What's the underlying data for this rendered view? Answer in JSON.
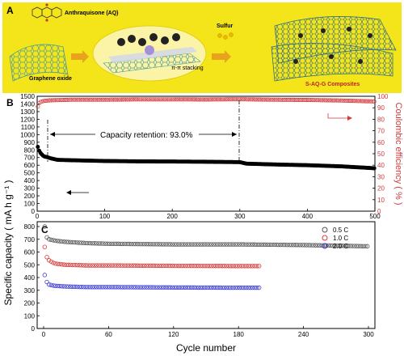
{
  "panel_a": {
    "label": "A",
    "anthraquinone_label": "Anthraquisone (AQ)",
    "graphene_label": "Graphene oxide",
    "stacking_label": "π-π stacking",
    "sulfur_label": "Sulfur",
    "composite_label": "S-AQ-G Composites",
    "colors": {
      "background": "#f4e51a",
      "arrow": "#e8a21c",
      "graphene": "#5aa8a0"
    }
  },
  "chart_data": [
    {
      "panel": "B",
      "type": "scatter",
      "xlabel": "",
      "xlim": [
        0,
        500
      ],
      "xticks": [
        0,
        100,
        200,
        300,
        400,
        500
      ],
      "ylabel": "Specific capacity ( mA h g⁻¹ )",
      "ylim": [
        0,
        1500
      ],
      "yticks": [
        0,
        100,
        200,
        300,
        400,
        500,
        600,
        700,
        800,
        900,
        1000,
        1100,
        1200,
        1300,
        1400,
        1500
      ],
      "y2label": "Coulombic efficiency ( % )",
      "y2lim": [
        0,
        100
      ],
      "y2ticks": [
        0,
        10,
        20,
        30,
        40,
        50,
        60,
        70,
        80,
        90,
        100
      ],
      "annotation": "Capacity retention: 93.0%",
      "series": [
        {
          "axis": "left",
          "color": "#000000",
          "points": [
            [
              1,
              840
            ],
            [
              2,
              810
            ],
            [
              3,
              790
            ],
            [
              5,
              760
            ],
            [
              8,
              730
            ],
            [
              10,
              715
            ],
            [
              15,
              705
            ],
            [
              20,
              690
            ],
            [
              30,
              670
            ],
            [
              50,
              665
            ],
            [
              75,
              660
            ],
            [
              100,
              655
            ],
            [
              150,
              650
            ],
            [
              200,
              648
            ],
            [
              250,
              645
            ],
            [
              300,
              640
            ],
            [
              310,
              620
            ],
            [
              350,
              610
            ],
            [
              400,
              600
            ],
            [
              450,
              585
            ],
            [
              500,
              560
            ]
          ]
        },
        {
          "axis": "right",
          "color": "#d23a3a",
          "points": [
            [
              1,
              91
            ],
            [
              3,
              94
            ],
            [
              5,
              95
            ],
            [
              10,
              96
            ],
            [
              20,
              96.5
            ],
            [
              50,
              97
            ],
            [
              100,
              97
            ],
            [
              150,
              97.3
            ],
            [
              200,
              97.3
            ],
            [
              250,
              97.2
            ],
            [
              300,
              97.4
            ],
            [
              350,
              97
            ],
            [
              400,
              96.8
            ],
            [
              450,
              96.3
            ],
            [
              500,
              95.5
            ]
          ]
        }
      ]
    },
    {
      "panel": "C",
      "type": "scatter",
      "xlabel": "Cycle number",
      "xlim": [
        0,
        300
      ],
      "xticks": [
        0,
        60,
        120,
        180,
        240,
        300
      ],
      "ylim": [
        0,
        800
      ],
      "yticks": [
        0,
        100,
        200,
        300,
        400,
        500,
        600,
        700,
        800
      ],
      "legend_position": "top-right",
      "series": [
        {
          "name": "0.5 C",
          "color": "#555555",
          "points": [
            [
              1,
              800
            ],
            [
              2,
              740
            ],
            [
              3,
              715
            ],
            [
              5,
              700
            ],
            [
              10,
              690
            ],
            [
              20,
              680
            ],
            [
              40,
              670
            ],
            [
              60,
              665
            ],
            [
              120,
              660
            ],
            [
              180,
              660
            ],
            [
              240,
              655
            ],
            [
              300,
              645
            ]
          ]
        },
        {
          "name": "1.0 C",
          "color": "#d23a3a",
          "points": [
            [
              1,
              640
            ],
            [
              2,
              590
            ],
            [
              3,
              560
            ],
            [
              5,
              535
            ],
            [
              10,
              510
            ],
            [
              20,
              500
            ],
            [
              40,
              495
            ],
            [
              60,
              495
            ],
            [
              120,
              492
            ],
            [
              180,
              490
            ],
            [
              200,
              490
            ]
          ]
        },
        {
          "name": "2.0 C",
          "color": "#3a3ad2",
          "points": [
            [
              1,
              420
            ],
            [
              2,
              390
            ],
            [
              3,
              365
            ],
            [
              5,
              345
            ],
            [
              10,
              335
            ],
            [
              20,
              330
            ],
            [
              40,
              325
            ],
            [
              60,
              325
            ],
            [
              120,
              322
            ],
            [
              180,
              320
            ],
            [
              200,
              320
            ]
          ]
        }
      ]
    }
  ]
}
